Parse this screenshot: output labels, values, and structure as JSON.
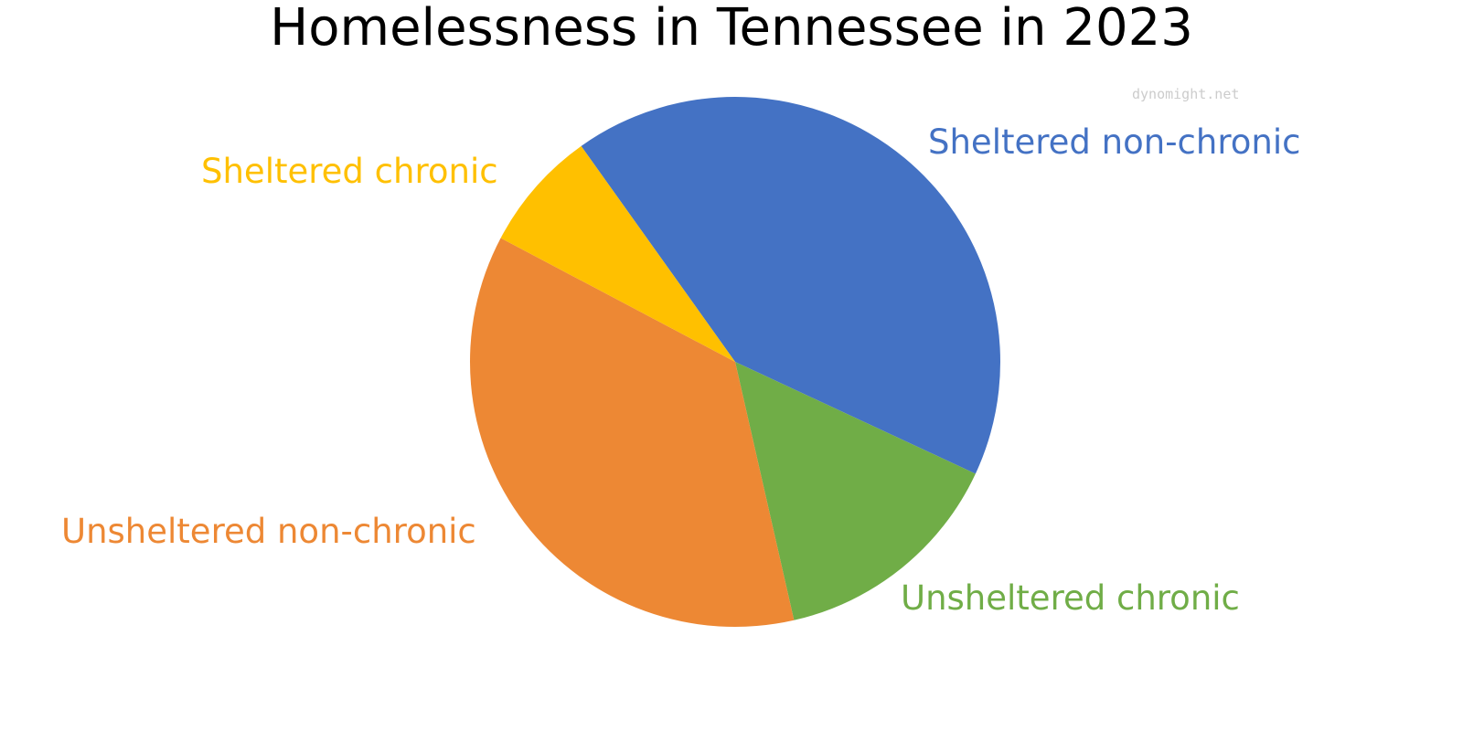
{
  "watermark": "dynomight.net",
  "chart_data": {
    "type": "pie",
    "title": "Homelessness in Tennessee in 2023",
    "slices": [
      {
        "label": "Sheltered non-chronic",
        "value": 41.8,
        "color": "#4472C4"
      },
      {
        "label": "Unsheltered chronic",
        "value": 14.5,
        "color": "#70AD47"
      },
      {
        "label": "Unsheltered non-chronic",
        "value": 36.3,
        "color": "#ED8834"
      },
      {
        "label": "Sheltered chronic",
        "value": 7.4,
        "color": "#FFC000"
      }
    ],
    "legend": "none (labels next to slices)"
  }
}
